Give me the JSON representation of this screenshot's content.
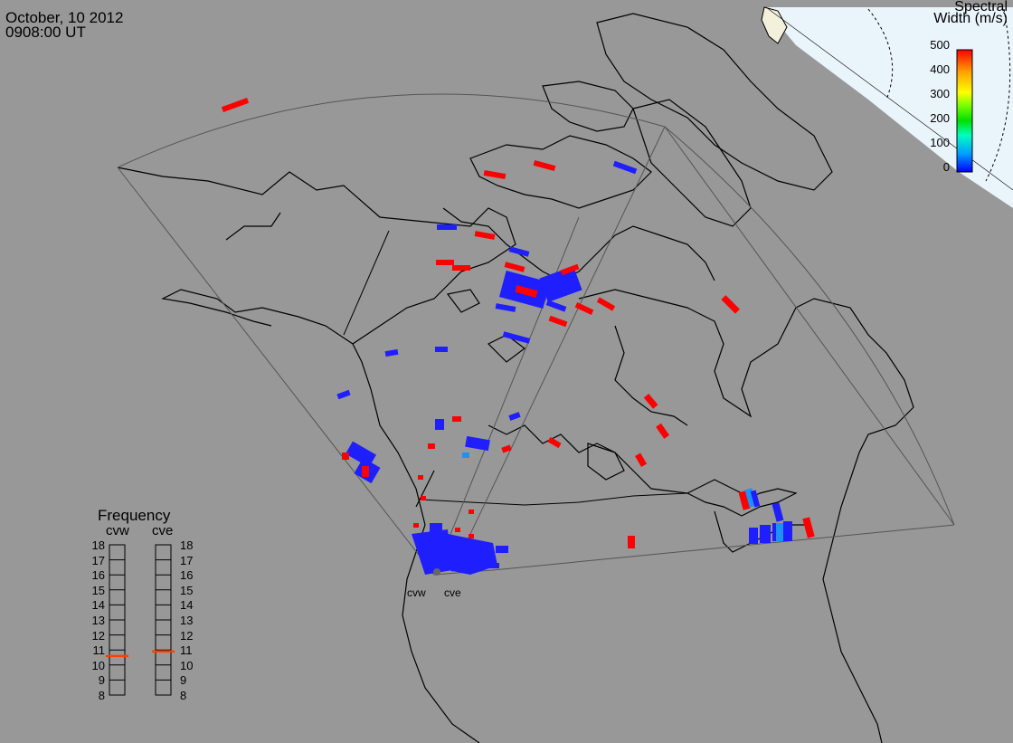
{
  "header": {
    "date": "October, 10 2012",
    "time": "0908:00 UT"
  },
  "colorbar": {
    "title_line1": "Spectral",
    "title_line2": "Width (m/s)",
    "ticks": [
      "500",
      "400",
      "300",
      "200",
      "100",
      "0"
    ],
    "range": [
      0,
      500
    ],
    "colors": [
      "#0000ff",
      "#00a0ff",
      "#00ffc0",
      "#00e000",
      "#80ff00",
      "#ffff00",
      "#ffa000",
      "#ff0000"
    ]
  },
  "frequency_panel": {
    "title": "Frequency",
    "radars": [
      {
        "name": "cvw",
        "selected_mhz": 10.6
      },
      {
        "name": "cve",
        "selected_mhz": 10.9
      }
    ],
    "ticks": [
      "18",
      "17",
      "16",
      "15",
      "14",
      "13",
      "12",
      "11",
      "10",
      "9",
      "8"
    ],
    "range_mhz": [
      8,
      18
    ],
    "marker_color": "#ff4000"
  },
  "sites": [
    {
      "label": "cvw"
    },
    {
      "label": "cve"
    }
  ],
  "colors": {
    "background": "#989898",
    "daylight": "#eaf4fb",
    "land_snow": "#f3f0dc",
    "coast": "#000000",
    "fov": "#555555",
    "echo_blue": "#1e1eff",
    "echo_red": "#ff0000",
    "echo_cyan": "#1e90ff"
  }
}
